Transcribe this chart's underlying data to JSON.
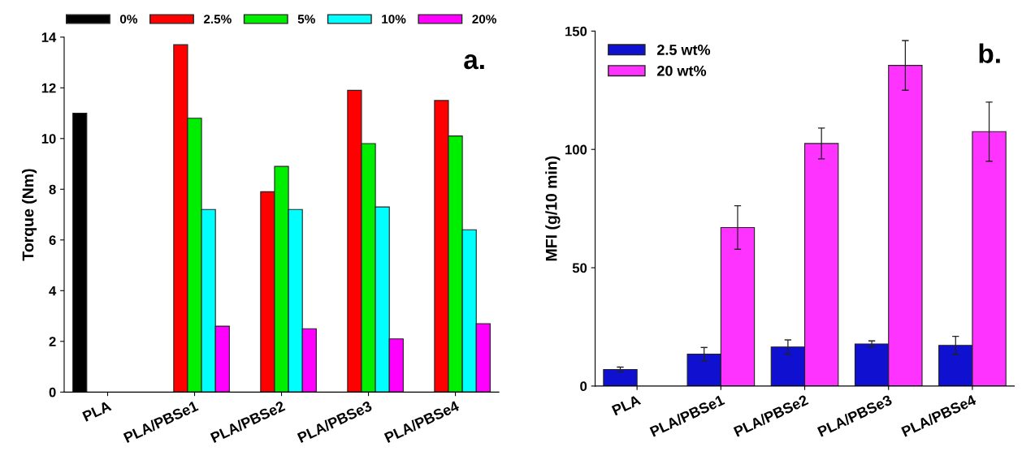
{
  "chart_data": [
    {
      "type": "bar",
      "categories": [
        "PLA",
        "PLA/PBSe1",
        "PLA/PBSe2",
        "PLA/PBSe3",
        "PLA/PBSe4"
      ],
      "ylabel": "Torque (Nm)",
      "ylim": [
        0,
        14
      ],
      "yticks": [
        0,
        2,
        4,
        6,
        8,
        10,
        12,
        14
      ],
      "legend": "top",
      "annotations": [
        "a."
      ],
      "series": [
        {
          "name": "0%",
          "color": "#000000",
          "values": [
            11.0,
            null,
            null,
            null,
            null
          ]
        },
        {
          "name": "2.5%",
          "color": "#ff0000",
          "values": [
            null,
            13.7,
            7.9,
            11.9,
            11.5
          ]
        },
        {
          "name": "5%",
          "color": "#00ee00",
          "values": [
            null,
            10.8,
            8.9,
            9.8,
            10.1
          ]
        },
        {
          "name": "10%",
          "color": "#00ffff",
          "values": [
            null,
            7.2,
            7.2,
            7.3,
            6.4
          ]
        },
        {
          "name": "20%",
          "color": "#ff00ff",
          "values": [
            null,
            2.6,
            2.5,
            2.1,
            2.7
          ]
        }
      ]
    },
    {
      "type": "bar",
      "categories": [
        "PLA",
        "PLA/PBSe1",
        "PLA/PBSe2",
        "PLA/PBSe3",
        "PLA/PBSe4"
      ],
      "ylabel": "MFI (g/10 min)",
      "ylim": [
        0,
        150
      ],
      "yticks": [
        0,
        50,
        100,
        150
      ],
      "legend": "top left",
      "annotations": [
        "b."
      ],
      "series": [
        {
          "name": "2.5 wt%",
          "color": "#1010d0",
          "values": [
            7,
            13.5,
            16.5,
            17.8,
            17.2
          ],
          "errors": [
            1,
            2.8,
            3,
            1.3,
            3.8
          ]
        },
        {
          "name": "20 wt%",
          "color": "#ff33ff",
          "values": [
            null,
            67,
            102.5,
            135.5,
            107.5
          ],
          "errors": [
            null,
            9.2,
            6.5,
            10.5,
            12.5
          ]
        }
      ]
    }
  ]
}
